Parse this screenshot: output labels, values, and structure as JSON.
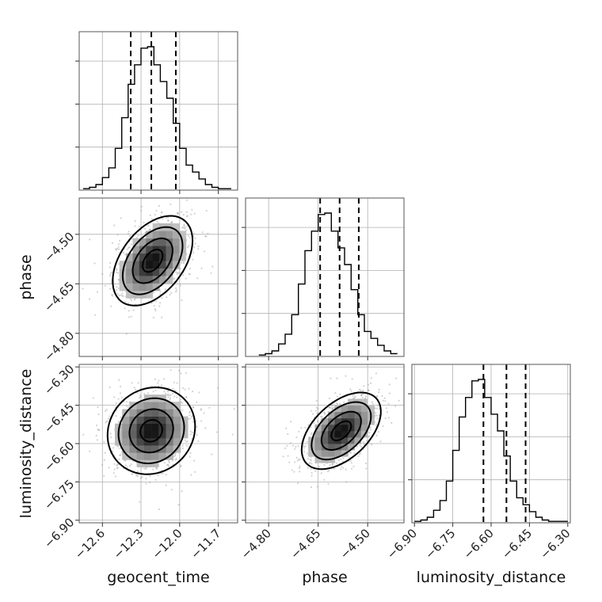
{
  "chart_data": {
    "type": "corner",
    "parameters": [
      "geocent_time",
      "phase",
      "luminosity_distance"
    ],
    "axes": {
      "geocent_time": {
        "label": "geocent_time",
        "range": [
          -12.78,
          -11.55
        ],
        "ticks": [
          -12.6,
          -12.3,
          -12.0,
          -11.7
        ],
        "tick_labels": [
          "−12.6",
          "−12.3",
          "−12.0",
          "−11.7"
        ]
      },
      "phase": {
        "label": "phase",
        "range": [
          -4.87,
          -4.39
        ],
        "ticks": [
          -4.8,
          -4.65,
          -4.5
        ],
        "tick_labels": [
          "−4.80",
          "−4.65",
          "−4.50"
        ]
      },
      "luminosity_distance": {
        "label": "luminosity_distance",
        "range": [
          -6.91,
          -6.29
        ],
        "ticks": [
          -6.9,
          -6.75,
          -6.6,
          -6.45,
          -6.3
        ],
        "tick_labels": [
          "−6.90",
          "−6.75",
          "−6.60",
          "−6.45",
          "−6.30"
        ]
      }
    },
    "grid": true,
    "histograms": {
      "geocent_time": {
        "bin_edges": [
          -12.75,
          -12.7,
          -12.65,
          -12.6,
          -12.55,
          -12.5,
          -12.45,
          -12.4,
          -12.35,
          -12.3,
          -12.25,
          -12.2,
          -12.15,
          -12.1,
          -12.05,
          -12.0,
          -11.95,
          -11.9,
          -11.85,
          -11.8,
          -11.75,
          -11.7,
          -11.65,
          -11.6
        ],
        "counts": [
          1,
          2,
          4,
          9,
          16,
          30,
          52,
          76,
          90,
          102,
          103,
          90,
          78,
          66,
          48,
          30,
          18,
          13,
          8,
          4,
          2,
          1,
          1
        ],
        "quantiles": [
          -12.38,
          -12.22,
          -12.03
        ]
      },
      "phase": {
        "bin_edges": [
          -4.83,
          -4.81,
          -4.79,
          -4.77,
          -4.75,
          -4.73,
          -4.71,
          -4.69,
          -4.67,
          -4.65,
          -4.63,
          -4.61,
          -4.59,
          -4.57,
          -4.55,
          -4.53,
          -4.51,
          -4.49,
          -4.47,
          -4.45,
          -4.43,
          -4.41
        ],
        "counts": [
          1,
          2,
          4,
          9,
          16,
          30,
          52,
          76,
          90,
          102,
          103,
          90,
          78,
          66,
          48,
          30,
          18,
          13,
          8,
          4,
          2
        ],
        "quantiles": [
          -4.644,
          -4.585,
          -4.527
        ]
      },
      "luminosity_distance": {
        "bin_edges": [
          -6.9,
          -6.875,
          -6.85,
          -6.825,
          -6.8,
          -6.775,
          -6.75,
          -6.725,
          -6.7,
          -6.675,
          -6.65,
          -6.625,
          -6.6,
          -6.575,
          -6.55,
          -6.525,
          -6.5,
          -6.475,
          -6.45,
          -6.425,
          -6.4,
          -6.375,
          -6.35,
          -6.325,
          -6.3
        ],
        "counts": [
          1,
          2,
          4,
          9,
          16,
          30,
          52,
          76,
          90,
          102,
          103,
          90,
          78,
          66,
          48,
          30,
          18,
          13,
          8,
          4,
          2,
          1,
          1,
          1
        ],
        "quantiles": [
          -6.63,
          -6.54,
          -6.465
        ]
      }
    },
    "pairs": [
      {
        "x": "geocent_time",
        "y": "phase",
        "mean": [
          -12.21,
          -4.58
        ],
        "sigma": [
          0.155,
          0.068
        ],
        "correlation": 0.45
      },
      {
        "x": "geocent_time",
        "y": "luminosity_distance",
        "mean": [
          -12.22,
          -6.55
        ],
        "sigma": [
          0.17,
          0.085
        ],
        "correlation": 0.1
      },
      {
        "x": "phase",
        "y": "luminosity_distance",
        "mean": [
          -4.58,
          -6.55
        ],
        "sigma": [
          0.06,
          0.075
        ],
        "correlation": 0.5
      }
    ]
  }
}
